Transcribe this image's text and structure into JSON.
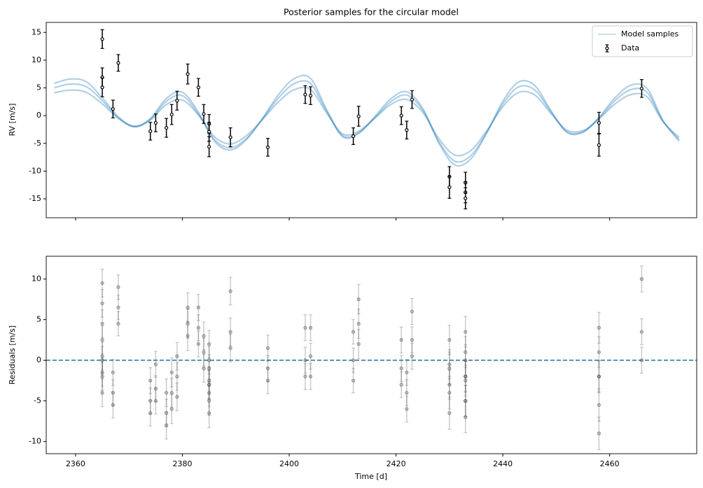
{
  "chart_data": [
    {
      "type": "rv",
      "title": "Posterior samples for the circular model",
      "ylabel": "RV [m/s]",
      "xlim": [
        2354.5,
        2476.3
      ],
      "ylim": [
        -18.4,
        16.8
      ],
      "yticks": [
        -15,
        -10,
        -5,
        0,
        5,
        10,
        15
      ],
      "legend": "upper right",
      "model_samples": {
        "name": "Model samples",
        "color": "#1f77b4",
        "x": [
          2356,
          2359,
          2362,
          2365,
          2368,
          2371,
          2374,
          2377,
          2380,
          2383,
          2386,
          2389,
          2392,
          2395,
          2398,
          2401,
          2404,
          2407,
          2410,
          2413,
          2416,
          2419,
          2422,
          2425,
          2428,
          2431,
          2434,
          2437,
          2440,
          2443,
          2446,
          2449,
          2452,
          2455,
          2458,
          2461,
          2464,
          2467,
          2470,
          2473
        ],
        "samples": [
          [
            5.0,
            5.7,
            5.2,
            2.7,
            -0.4,
            -2.0,
            -0.7,
            2.6,
            3.6,
            0.3,
            -4.3,
            -5.8,
            -4.1,
            -0.6,
            3.2,
            5.8,
            5.8,
            0.8,
            -3.6,
            -3.1,
            -0.4,
            2.5,
            3.7,
            1.0,
            -4.6,
            -8.2,
            -7.2,
            -3.0,
            2.1,
            5.2,
            4.6,
            0.7,
            -2.9,
            -2.9,
            -0.5,
            2.7,
            4.7,
            4.2,
            -1.0,
            -4.3
          ],
          [
            5.8,
            6.6,
            6.1,
            3.2,
            -0.2,
            -2.0,
            -0.5,
            3.1,
            4.2,
            0.6,
            -4.6,
            -6.2,
            -4.3,
            -0.5,
            3.8,
            6.7,
            6.7,
            1.1,
            -3.8,
            -3.2,
            -0.2,
            3.0,
            4.3,
            1.3,
            -4.9,
            -8.9,
            -7.8,
            -3.1,
            2.6,
            6.1,
            5.4,
            0.9,
            -3.0,
            -3.0,
            -0.3,
            3.2,
            5.5,
            4.9,
            -0.9,
            -4.6
          ],
          [
            4.1,
            4.6,
            4.2,
            2.1,
            -0.5,
            -1.9,
            -0.8,
            2.0,
            2.8,
            0.1,
            -3.8,
            -5.1,
            -3.6,
            -0.7,
            2.5,
            4.7,
            4.7,
            0.5,
            -3.3,
            -2.8,
            -0.5,
            2.0,
            2.9,
            0.6,
            -4.1,
            -7.1,
            -6.3,
            -2.7,
            1.6,
            4.2,
            3.7,
            0.4,
            -2.6,
            -2.7,
            -0.6,
            2.1,
            3.8,
            3.4,
            -1.1,
            -3.9
          ]
        ]
      },
      "data": {
        "name": "Data",
        "color": "#000000",
        "x": [
          2365,
          2365,
          2365,
          2367,
          2368,
          2374,
          2375,
          2377,
          2378,
          2379,
          2381,
          2383,
          2384,
          2385,
          2385,
          2385,
          2389,
          2396,
          2403,
          2404,
          2412,
          2413,
          2421,
          2422,
          2423,
          2430,
          2430,
          2433,
          2433,
          2433,
          2458,
          2458,
          2466
        ],
        "values": [
          13.8,
          6.9,
          5.1,
          1.2,
          9.5,
          -2.8,
          -1.3,
          -2.2,
          0.2,
          2.7,
          7.5,
          5.1,
          0.3,
          -1.5,
          -2.9,
          -5.6,
          -3.9,
          -5.7,
          3.8,
          3.6,
          -3.7,
          -0.1,
          0.0,
          -2.6,
          2.9,
          -11.0,
          -12.9,
          -12.1,
          -13.8,
          -14.9,
          -1.3,
          -5.3,
          4.9
        ],
        "errors": [
          1.7,
          1.7,
          1.7,
          1.6,
          1.5,
          1.6,
          1.6,
          1.7,
          1.8,
          1.7,
          1.8,
          1.6,
          1.7,
          1.7,
          1.7,
          1.8,
          1.7,
          1.6,
          1.6,
          1.6,
          1.5,
          1.8,
          1.6,
          1.6,
          1.6,
          1.8,
          2.0,
          1.9,
          1.9,
          1.9,
          1.9,
          2.0,
          1.6
        ]
      }
    },
    {
      "type": "residuals",
      "xlabel": "Time [d]",
      "ylabel": "Residuals [m/s]",
      "xlim": [
        2354.5,
        2476.3
      ],
      "ylim": [
        -11.5,
        12.8
      ],
      "xticks": [
        2360,
        2380,
        2400,
        2420,
        2440,
        2460
      ],
      "yticks": [
        -10,
        -5,
        0,
        5,
        10
      ],
      "hline": 0,
      "hline_color": "#1f6f9f",
      "color": "#555555",
      "x": [
        2365,
        2365,
        2365,
        2367,
        2368,
        2374,
        2375,
        2377,
        2378,
        2379,
        2381,
        2383,
        2384,
        2385,
        2385,
        2385,
        2389,
        2396,
        2403,
        2404,
        2412,
        2413,
        2421,
        2422,
        2423,
        2430,
        2430,
        2433,
        2433,
        2433,
        2458,
        2458,
        2466
      ],
      "errors": [
        1.7,
        1.7,
        1.7,
        1.6,
        1.5,
        1.6,
        1.6,
        1.7,
        1.8,
        1.7,
        1.8,
        1.6,
        1.7,
        1.7,
        1.7,
        1.8,
        1.7,
        1.6,
        1.6,
        1.6,
        1.5,
        1.8,
        1.6,
        1.6,
        1.6,
        1.8,
        2.0,
        1.9,
        1.9,
        1.9,
        1.9,
        2.0,
        1.6
      ],
      "samples": [
        [
          4.5,
          -1.5,
          -4,
          -5.5,
          4.5,
          -6.5,
          -5,
          -8,
          -6,
          -4.5,
          3,
          2,
          -1,
          -3,
          -4,
          -6.5,
          1.5,
          -2.5,
          -2,
          -2,
          -2.5,
          2,
          -3,
          -6,
          0.5,
          -3,
          -6.5,
          -2,
          -5,
          -7,
          -2,
          -9,
          0
        ],
        [
          7,
          0.5,
          -2,
          -4,
          6.5,
          -5,
          -3.5,
          -6.5,
          -4,
          -2,
          4.5,
          4,
          1,
          -1,
          -2.5,
          -5,
          3.5,
          -1,
          0,
          0.5,
          0,
          4.5,
          -1,
          -4,
          2.5,
          -0.5,
          -4,
          0,
          -2.5,
          -5,
          1,
          -5.5,
          3.5
        ],
        [
          9.5,
          2.5,
          0,
          -1.5,
          9,
          -2.5,
          -0.5,
          -4,
          -1.5,
          0.5,
          6.5,
          6.5,
          3,
          2,
          0,
          -3,
          8.5,
          1.5,
          4,
          4,
          3.5,
          7.5,
          2.5,
          -1.5,
          6,
          2.5,
          -1,
          3.5,
          1,
          -2,
          4,
          -2,
          10
        ]
      ]
    }
  ]
}
